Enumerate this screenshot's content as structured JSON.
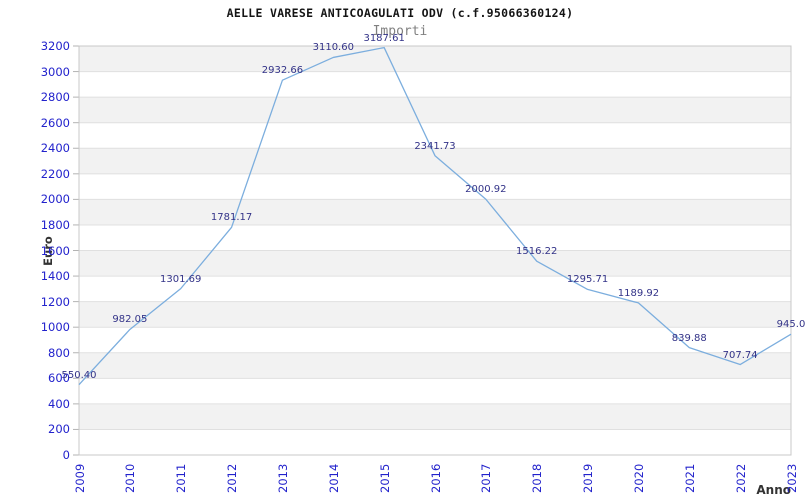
{
  "title": "AELLE VARESE ANTICOAGULATI ODV (c.f.95066360124)",
  "subtitle": "Importi",
  "chart_data": {
    "type": "line",
    "title": "AELLE VARESE ANTICOAGULATI ODV (c.f.95066360124)",
    "subtitle": "Importi",
    "xlabel": "Anno",
    "ylabel": "Euro",
    "x": [
      2009,
      2010,
      2011,
      2012,
      2013,
      2014,
      2015,
      2016,
      2017,
      2018,
      2019,
      2020,
      2021,
      2022,
      2023
    ],
    "values": [
      550.4,
      982.05,
      1301.69,
      1781.17,
      2932.66,
      3110.6,
      3187.61,
      2341.73,
      2000.92,
      1516.22,
      1295.71,
      1189.92,
      839.88,
      707.74,
      945.0
    ],
    "point_labels": [
      "550.40",
      "982.05",
      "1301.69",
      "1781.17",
      "2932.66",
      "3110.60",
      "3187.61",
      "2341.73",
      "2000.92",
      "1516.22",
      "1295.71",
      "1189.92",
      "839.88",
      "707.74",
      "945.0"
    ],
    "ylim": [
      0,
      3200
    ],
    "ytick_step": 200,
    "grid": "horizontal alternating bands",
    "legend": "none",
    "colors": {
      "line": "#7caede",
      "tick_label": "#2222cc",
      "point_label": "#333388",
      "band": "#f2f2f2",
      "gridline": "#e0e0e0",
      "border": "#c8c8c8",
      "tick_mark": "#b3b3b3",
      "axis_title": "#333333",
      "title": "#141414",
      "subtitle": "#808080"
    }
  }
}
